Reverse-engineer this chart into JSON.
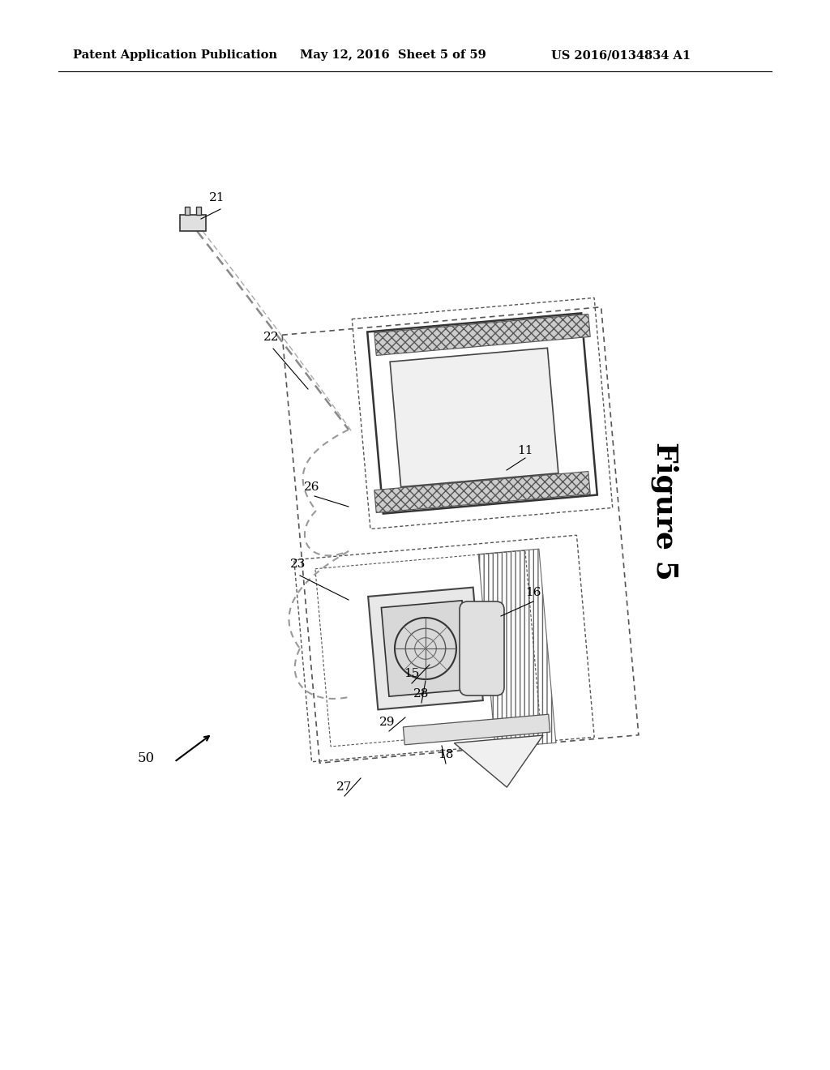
{
  "header_left": "Patent Application Publication",
  "header_mid": "May 12, 2016  Sheet 5 of 59",
  "header_right": "US 2016/0134834 A1",
  "figure_label": "Figure 5",
  "bg_color": "#ffffff"
}
